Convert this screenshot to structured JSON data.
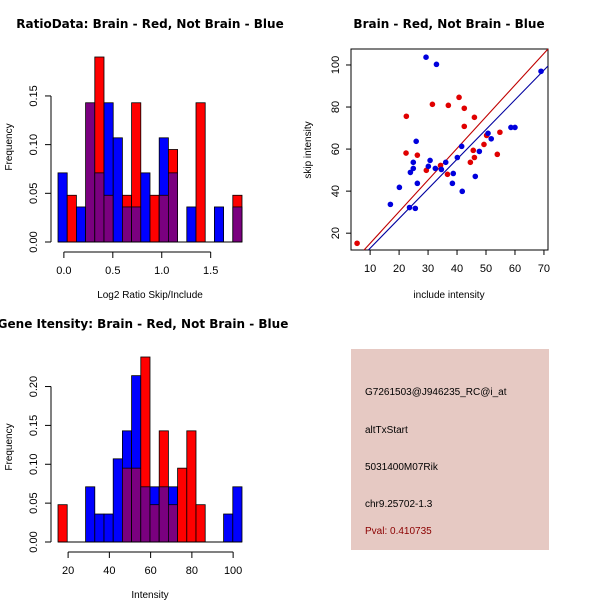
{
  "colors": {
    "brain": "#ff0000",
    "not_brain": "#0000ff",
    "overlap": "#7a007f",
    "brain_fit": "#c00000",
    "not_brain_fit": "#0000a0",
    "panel_bg": "#e6c9c3",
    "pval_text": "#8b0000"
  },
  "chart_data": [
    {
      "id": "ratio-hist",
      "type": "bar",
      "title": "RatioData: Brain - Red, Not Brain - Blue",
      "xlabel": "Log2 Ratio Skip/Include",
      "ylabel": "Frequency",
      "xticks": [
        0.0,
        0.5,
        1.0,
        1.5
      ],
      "xtick_labels": [
        "0.0",
        "0.5",
        "1.0",
        "1.5"
      ],
      "yticks": [
        0.0,
        0.05,
        0.1,
        0.15
      ],
      "ytick_labels": [
        "0.00",
        "0.05",
        "0.10",
        "0.15"
      ],
      "bin_start": -0.06,
      "bin_width": 0.094,
      "xlim": [
        -0.06,
        1.82
      ],
      "ylim": [
        0,
        0.19
      ],
      "series": [
        {
          "name": "Not Brain",
          "color": "blue",
          "values": [
            0.071,
            0,
            0.036,
            0.143,
            0.071,
            0.143,
            0.107,
            0.036,
            0.036,
            0.071,
            0,
            0.107,
            0.071,
            0,
            0.036,
            0,
            0,
            0.036,
            0,
            0.036
          ]
        },
        {
          "name": "Brain",
          "color": "red",
          "values": [
            0,
            0.048,
            0,
            0.143,
            0.19,
            0.048,
            0,
            0.048,
            0.143,
            0,
            0.048,
            0.048,
            0.095,
            0,
            0,
            0.143,
            0,
            0,
            0,
            0.048
          ]
        }
      ]
    },
    {
      "id": "intensity-scatter",
      "type": "scatter",
      "title": "Brain - Red, Not Brain - Blue",
      "xlabel": "include intensity",
      "ylabel": "skip intensity",
      "xticks": [
        10,
        20,
        30,
        40,
        50,
        60,
        70
      ],
      "yticks": [
        20,
        40,
        60,
        80,
        100
      ],
      "xlim": [
        3.4,
        71.4
      ],
      "ylim": [
        12,
        107.6
      ],
      "series": [
        {
          "name": "Brain",
          "color": "red",
          "points": [
            [
              5.5,
              15.2
            ],
            [
              22.4,
              58.1
            ],
            [
              26.3,
              57.1
            ],
            [
              22.5,
              75.6
            ],
            [
              31.5,
              81.3
            ],
            [
              37,
              80.8
            ],
            [
              40.7,
              84.6
            ],
            [
              42.5,
              79.4
            ],
            [
              46,
              75.1
            ],
            [
              42.5,
              70.8
            ],
            [
              54.8,
              68.0
            ],
            [
              50.2,
              66.5
            ],
            [
              49.3,
              62.2
            ],
            [
              45.6,
              59.4
            ],
            [
              46,
              56
            ],
            [
              53.9,
              57.5
            ],
            [
              44.6,
              53.7
            ],
            [
              34.3,
              52.2
            ],
            [
              29.4,
              49.9
            ],
            [
              36.7,
              48.0
            ]
          ]
        },
        {
          "name": "Not Brain",
          "color": "blue",
          "points": [
            [
              29.3,
              103.7
            ],
            [
              32.9,
              100.3
            ],
            [
              69,
              97.0
            ],
            [
              58.6,
              70.3
            ],
            [
              60,
              70.3
            ],
            [
              25.9,
              63.7
            ],
            [
              50.7,
              67.5
            ],
            [
              51.8,
              64.9
            ],
            [
              41.6,
              61.3
            ],
            [
              47.7,
              58.9
            ],
            [
              40.1,
              56
            ],
            [
              30.7,
              54.6
            ],
            [
              24.9,
              53.7
            ],
            [
              36.1,
              53.7
            ],
            [
              30.1,
              51.8
            ],
            [
              24.9,
              50.8
            ],
            [
              32.5,
              50.8
            ],
            [
              34.6,
              50.3
            ],
            [
              23.9,
              48.9
            ],
            [
              38.7,
              48.4
            ],
            [
              46.3,
              47.0
            ],
            [
              26.3,
              43.7
            ],
            [
              38.4,
              43.7
            ],
            [
              41.8,
              39.9
            ],
            [
              20.1,
              41.8
            ],
            [
              17,
              33.7
            ],
            [
              23.6,
              32.2
            ],
            [
              25.6,
              31.8
            ]
          ]
        }
      ],
      "fit_lines": [
        {
          "name": "Brain fit",
          "color": "red",
          "from": [
            7.9,
            12
          ],
          "to": [
            71.4,
            107.6
          ]
        },
        {
          "name": "Not Brain fit",
          "color": "blue",
          "from": [
            9.4,
            12
          ],
          "to": [
            71.4,
            99.5
          ]
        }
      ]
    },
    {
      "id": "gene-intensity-hist",
      "type": "bar",
      "title": "Gene Itensity: Brain - Red, Not Brain - Blue",
      "xlabel": "Intensity",
      "ylabel": "Frequency",
      "xticks": [
        20,
        40,
        60,
        80,
        100
      ],
      "xtick_labels": [
        "20",
        "40",
        "60",
        "80",
        "100"
      ],
      "yticks": [
        0.0,
        0.05,
        0.1,
        0.15,
        0.2
      ],
      "ytick_labels": [
        "0.00",
        "0.05",
        "0.10",
        "0.15",
        "0.20"
      ],
      "bin_start": 15.1,
      "bin_width": 4.46,
      "xlim": [
        15.1,
        104.3
      ],
      "ylim": [
        0,
        0.238
      ],
      "series": [
        {
          "name": "Not Brain",
          "color": "blue",
          "values": [
            0,
            0,
            0,
            0.071,
            0.036,
            0.036,
            0.107,
            0.143,
            0.214,
            0.071,
            0.071,
            0.071,
            0.071,
            0,
            0,
            0,
            0,
            0,
            0.036,
            0.071
          ]
        },
        {
          "name": "Brain",
          "color": "red",
          "values": [
            0.048,
            0,
            0,
            0,
            0,
            0,
            0,
            0.095,
            0.095,
            0.238,
            0.048,
            0.143,
            0.048,
            0.095,
            0.143,
            0.048,
            0,
            0,
            0,
            0
          ]
        }
      ]
    }
  ],
  "info_panel": {
    "probe_id": "G7261503@J946235_RC@i_at",
    "event_type": "altTxStart",
    "gene_name": "5031400M07Rik",
    "location": "chr9.25702-1.3",
    "pval": "Pval: 0.410735"
  }
}
